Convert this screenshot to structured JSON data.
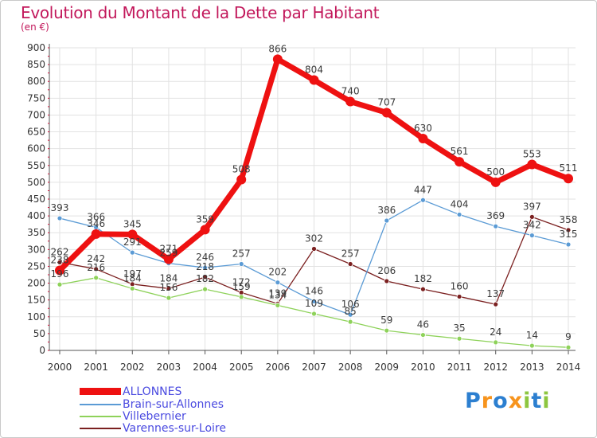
{
  "title": "Evolution du Montant de la Dette par Habitant",
  "unit": "(en €)",
  "logo": {
    "letters": [
      "P",
      "r",
      "o",
      "x",
      "i",
      "t",
      "i"
    ],
    "colors": [
      "#2c7fd0",
      "#f7941d",
      "#2c7fd0",
      "#f7941d",
      "#8dc63f",
      "#2c7fd0",
      "#8dc63f"
    ]
  },
  "chart_data": {
    "type": "line",
    "x": [
      "2000",
      "2001",
      "2002",
      "2003",
      "2004",
      "2005",
      "2006",
      "2007",
      "2008",
      "2009",
      "2010",
      "2011",
      "2012",
      "2013",
      "2014"
    ],
    "ylim": [
      0,
      900
    ],
    "yticks": [
      0,
      50,
      100,
      150,
      200,
      250,
      300,
      350,
      400,
      450,
      500,
      550,
      600,
      650,
      700,
      750,
      800,
      850,
      900
    ],
    "grid": true,
    "legend_position": "bottom-left",
    "series": [
      {
        "name": "ALLONNES",
        "color": "#ee1111",
        "values": [
          238,
          346,
          345,
          271,
          359,
          508,
          866,
          804,
          740,
          707,
          630,
          561,
          500,
          553,
          511
        ],
        "labels": [
          "238",
          "346",
          "345",
          "271",
          "359",
          "508",
          "866",
          "804",
          "740",
          "707",
          "630",
          "561",
          "500",
          "553",
          "511"
        ]
      },
      {
        "name": "Brain-sur-Allonnes",
        "color": "#5b9bd5",
        "values": [
          393,
          366,
          291,
          259,
          246,
          257,
          202,
          146,
          106,
          386,
          447,
          404,
          369,
          342,
          315
        ],
        "labels": [
          "393",
          "366",
          "291",
          "259",
          "246",
          "257",
          "202",
          "146",
          "106",
          "386",
          "447",
          "404",
          "369",
          "342",
          "315"
        ]
      },
      {
        "name": "Villebernier",
        "color": "#8ed25a",
        "values": [
          196,
          216,
          184,
          156,
          182,
          159,
          134,
          109,
          85,
          59,
          46,
          35,
          24,
          14,
          9
        ],
        "labels": [
          "196",
          "216",
          "184",
          "156",
          "182",
          "159",
          "134",
          "109",
          "85",
          "59",
          "46",
          "35",
          "24",
          "14",
          "9"
        ]
      },
      {
        "name": "Varennes-sur-Loire",
        "color": "#7b2020",
        "values": [
          262,
          242,
          197,
          184,
          218,
          172,
          139,
          302,
          257,
          206,
          182,
          160,
          137,
          397,
          358
        ],
        "labels": [
          "262",
          "242",
          "197",
          "184",
          "218",
          "172",
          "139",
          "302",
          "257",
          "206",
          "182",
          "160",
          "137",
          "397",
          "358"
        ]
      }
    ]
  }
}
